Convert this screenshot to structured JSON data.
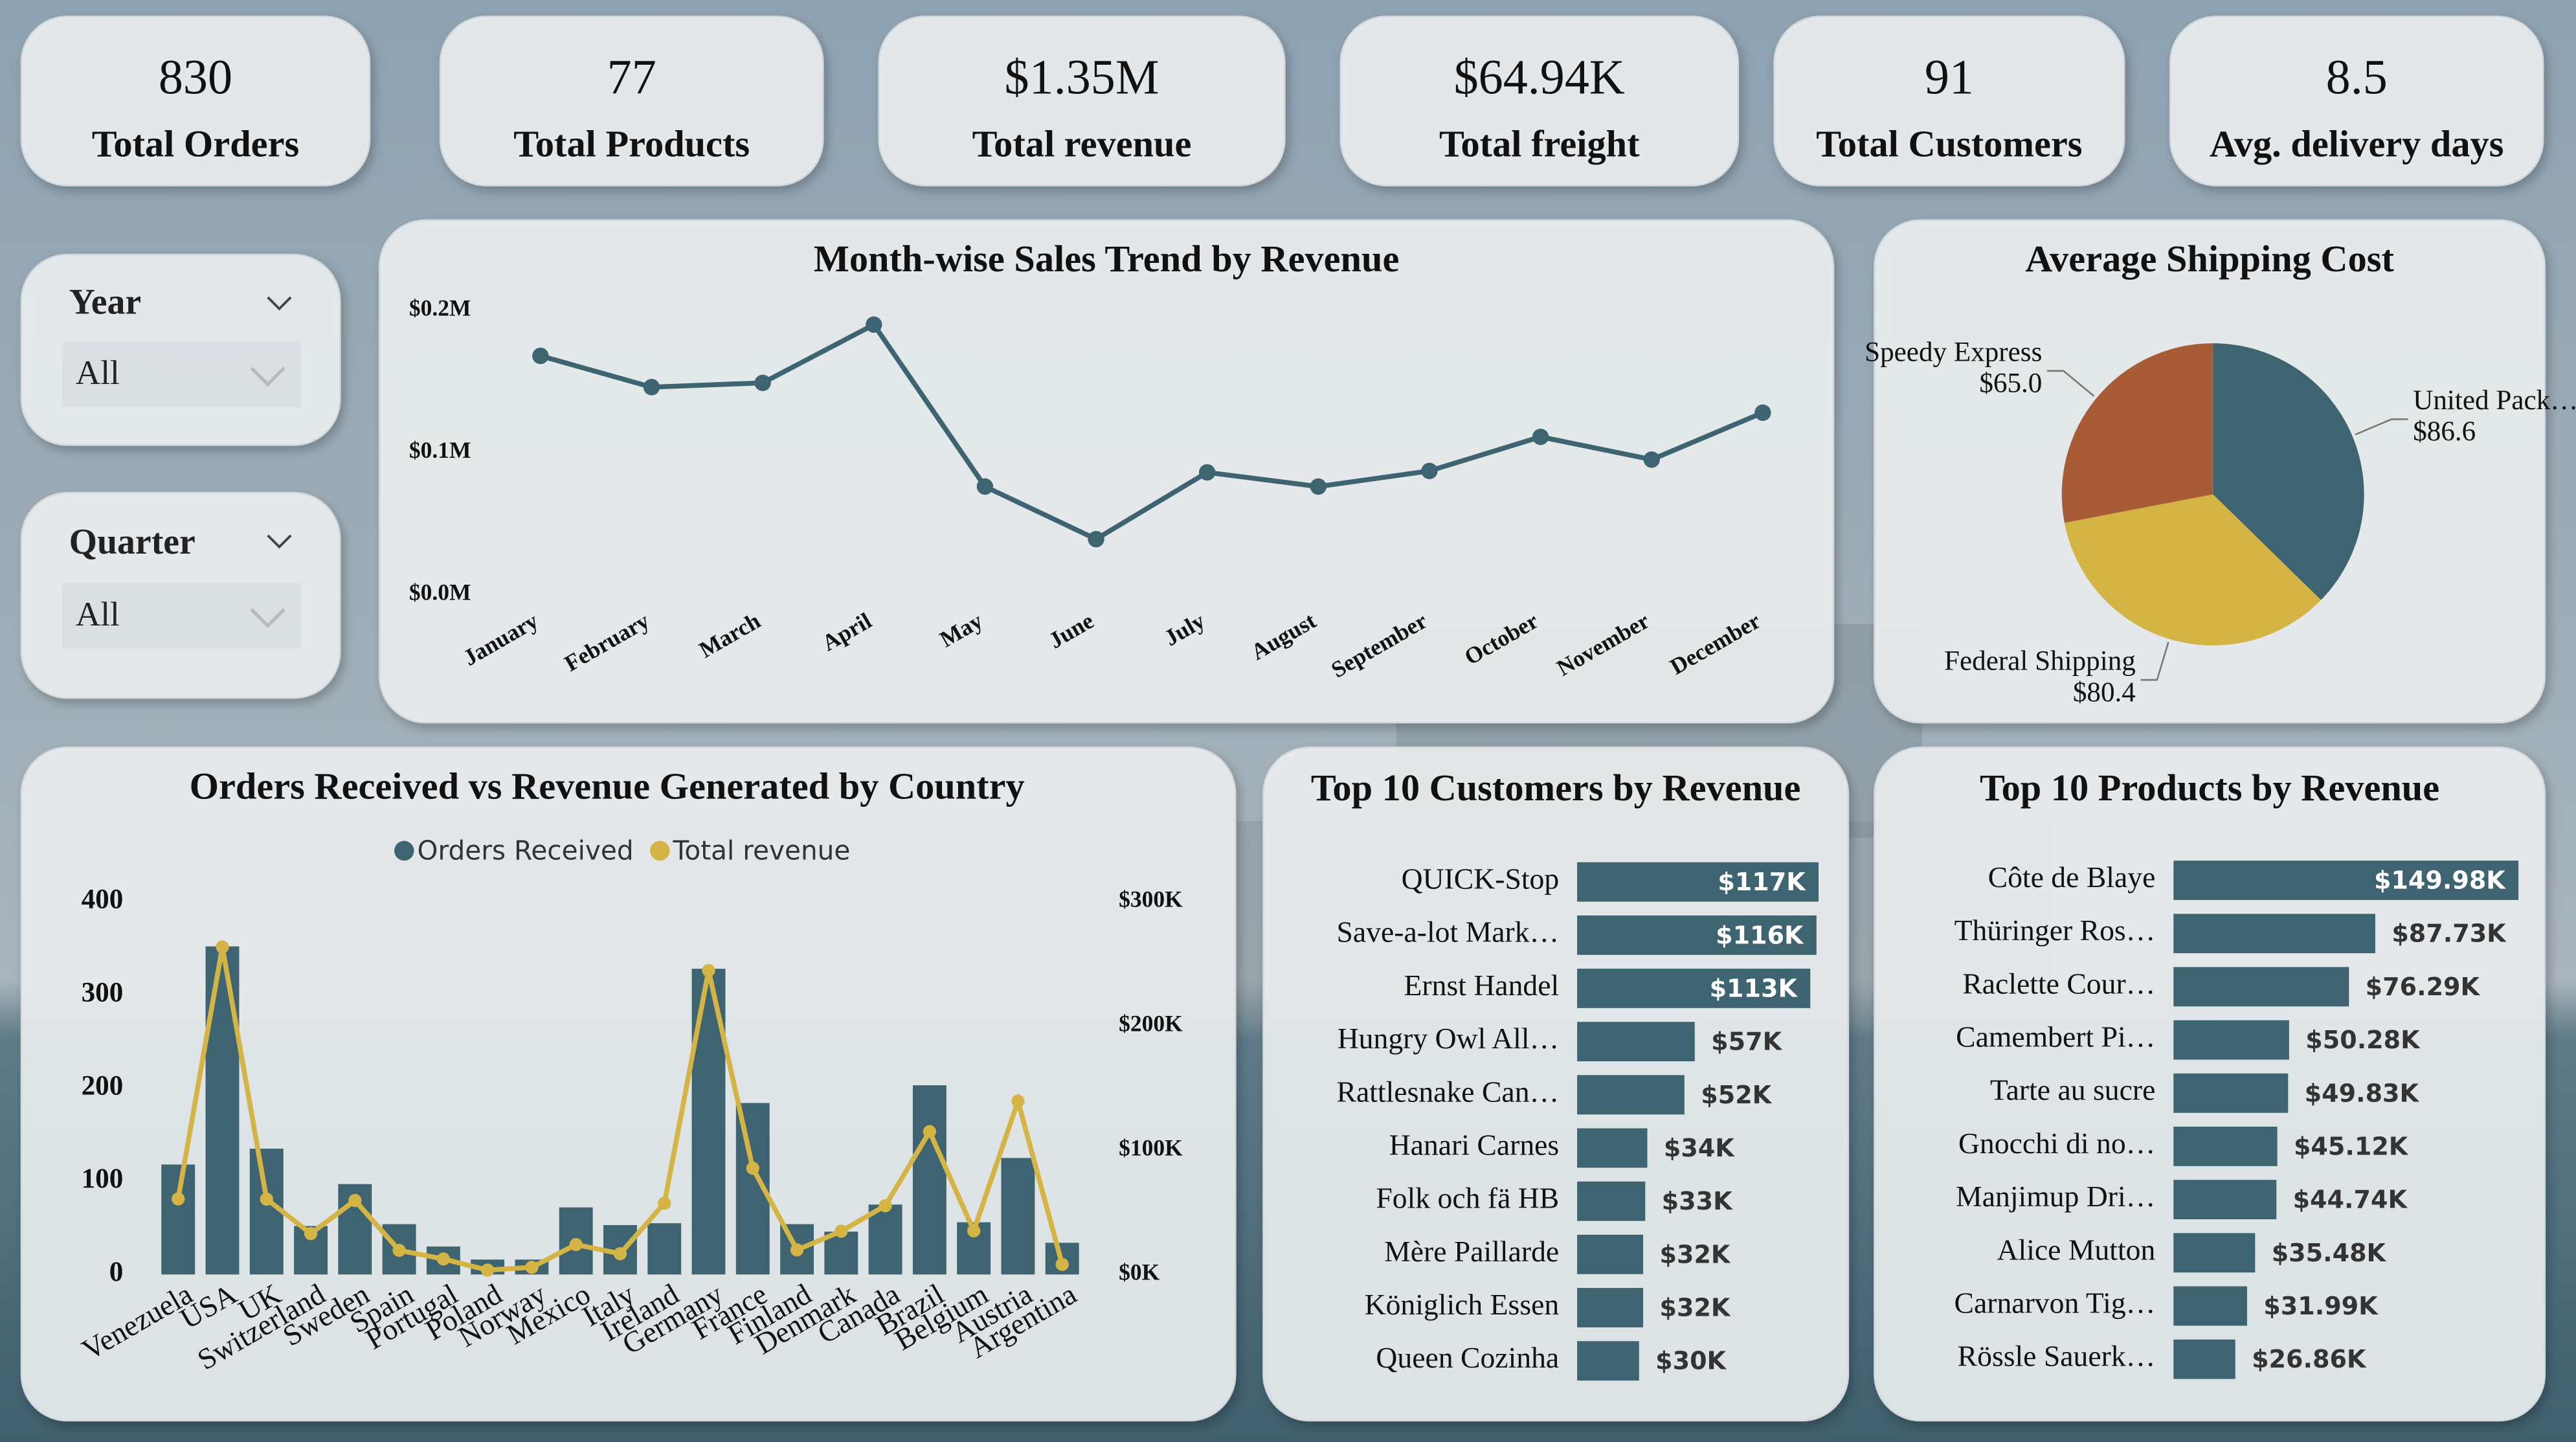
{
  "kpis": [
    {
      "value": "830",
      "label": "Total Orders"
    },
    {
      "value": "77",
      "label": "Total Products"
    },
    {
      "value": "$1.35M",
      "label": "Total revenue"
    },
    {
      "value": "$64.94K",
      "label": "Total freight"
    },
    {
      "value": "91",
      "label": "Total Customers"
    },
    {
      "value": "8.5",
      "label": "Avg. delivery days"
    }
  ],
  "slicers": [
    {
      "label": "Year",
      "selection": "All"
    },
    {
      "label": "Quarter",
      "selection": "All"
    }
  ],
  "chart_data": [
    {
      "type": "line",
      "title": "Month-wise Sales Trend by Revenue",
      "categories": [
        "January",
        "February",
        "March",
        "April",
        "May",
        "June",
        "July",
        "August",
        "September",
        "October",
        "November",
        "December"
      ],
      "values": [
        168000,
        146000,
        149000,
        190000,
        76000,
        39000,
        86000,
        76000,
        87000,
        111000,
        95000,
        128000
      ],
      "color": "#3d6470",
      "ylim": [
        0,
        200000
      ],
      "yticks": [
        {
          "value": 0,
          "label": "$0.0M"
        },
        {
          "value": 100000,
          "label": "$0.1M"
        },
        {
          "value": 200000,
          "label": "$0.2M"
        }
      ]
    },
    {
      "type": "pie",
      "title": "Average Shipping Cost",
      "categories": [
        "United Pack…",
        "Federal Shipping",
        "Speedy Express"
      ],
      "values": [
        86.6,
        80.4,
        65.0
      ],
      "value_labels": [
        "$86.6",
        "$80.4",
        "$65.0"
      ],
      "colors": [
        "#3d6470",
        "#d4b445",
        "#a85c35"
      ]
    },
    {
      "type": "combo",
      "title": "Orders Received vs Revenue Generated by Country",
      "categories": [
        "Venezuela",
        "USA",
        "UK",
        "Switzerland",
        "Sweden",
        "Spain",
        "Portugal",
        "Poland",
        "Norway",
        "Mexico",
        "Italy",
        "Ireland",
        "Germany",
        "France",
        "Finland",
        "Denmark",
        "Canada",
        "Brazil",
        "Belgium",
        "Austria",
        "Argentina"
      ],
      "series": [
        {
          "name": "Orders Received",
          "type": "bar",
          "color": "#3d6470",
          "values": [
            118,
            352,
            135,
            52,
            97,
            54,
            30,
            16,
            16,
            72,
            53,
            55,
            328,
            184,
            54,
            46,
            75,
            203,
            56,
            125,
            34
          ]
        },
        {
          "name": "Total revenue",
          "type": "line",
          "axis": "y2",
          "color": "#d4b445",
          "values": [
            60814,
            263566,
            60616,
            32919,
            59523,
            19431,
            12468,
            3532,
            5735,
            24073,
            16705,
            57317,
            244640,
            85498,
            19779,
            34782,
            55334,
            114968,
            35134,
            139496,
            8119
          ]
        }
      ],
      "ylim": [
        0,
        400
      ],
      "yticks": [
        0,
        100,
        200,
        300,
        400
      ],
      "y2lim": [
        0,
        300000
      ],
      "y2ticks": [
        {
          "value": 0,
          "label": "$0K"
        },
        {
          "value": 100000,
          "label": "$100K"
        },
        {
          "value": 200000,
          "label": "$200K"
        },
        {
          "value": 300000,
          "label": "$300K"
        }
      ]
    },
    {
      "type": "bar",
      "orientation": "horizontal",
      "title": "Top 10 Customers by Revenue",
      "categories": [
        "QUICK-Stop",
        "Save-a-lot Mark…",
        "Ernst Handel",
        "Hungry Owl All…",
        "Rattlesnake Can…",
        "Hanari Carnes",
        "Folk och fä HB",
        "Mère Paillarde",
        "Königlich Essen",
        "Queen Cozinha"
      ],
      "values": [
        117,
        116,
        113,
        57,
        52,
        34,
        33,
        32,
        32,
        30
      ],
      "value_labels": [
        "$117K",
        "$116K",
        "$113K",
        "$57K",
        "$52K",
        "$34K",
        "$33K",
        "$32K",
        "$32K",
        "$30K"
      ],
      "color": "#3d6470"
    },
    {
      "type": "bar",
      "orientation": "horizontal",
      "title": "Top 10 Products by Revenue",
      "categories": [
        "Côte de Blaye",
        "Thüringer Ros…",
        "Raclette Cour…",
        "Camembert Pi…",
        "Tarte au sucre",
        "Gnocchi di no…",
        "Manjimup Dri…",
        "Alice Mutton",
        "Carnarvon Tig…",
        "Rössle Sauerk…"
      ],
      "values": [
        149.98,
        87.73,
        76.29,
        50.28,
        49.83,
        45.12,
        44.74,
        35.48,
        31.99,
        26.86
      ],
      "value_labels": [
        "$149.98K",
        "$87.73K",
        "$76.29K",
        "$50.28K",
        "$49.83K",
        "$45.12K",
        "$44.74K",
        "$35.48K",
        "$31.99K",
        "$26.86K"
      ],
      "color": "#3d6470"
    }
  ]
}
